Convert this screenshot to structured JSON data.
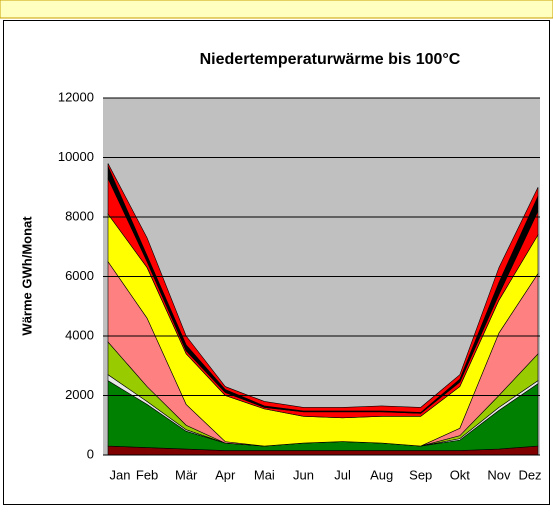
{
  "chart_data": {
    "type": "stacked_area",
    "title": "Niedertemperaturwärme  bis 100°C",
    "y_label": "Wärme GWh/Monat",
    "categories": [
      "Jan",
      "Feb",
      "Mär",
      "Apr",
      "Mai",
      "Jun",
      "Jul",
      "Aug",
      "Sep",
      "Okt",
      "Nov",
      "Dez"
    ],
    "ylim": [
      0,
      12000
    ],
    "yticks": [
      0,
      2000,
      4000,
      6000,
      8000,
      10000,
      12000
    ],
    "grid": true,
    "series": [
      {
        "color": "#800000",
        "values": [
          300,
          250,
          200,
          150,
          150,
          150,
          150,
          150,
          150,
          150,
          200,
          300
        ]
      },
      {
        "color": "#008000",
        "values": [
          2200,
          1450,
          600,
          250,
          150,
          250,
          300,
          250,
          150,
          350,
          1300,
          2100
        ]
      },
      {
        "color": "#e8e8e8",
        "values": [
          200,
          100,
          50,
          0,
          0,
          0,
          0,
          0,
          0,
          50,
          100,
          100
        ]
      },
      {
        "color": "#99cc00",
        "values": [
          1100,
          500,
          150,
          0,
          0,
          0,
          0,
          0,
          0,
          100,
          400,
          900
        ]
      },
      {
        "color": "#ff8080",
        "values": [
          2700,
          2300,
          700,
          50,
          0,
          0,
          0,
          0,
          0,
          250,
          2100,
          2700
        ]
      },
      {
        "color": "#ffff00",
        "values": [
          1600,
          1700,
          1700,
          1550,
          1250,
          900,
          800,
          900,
          1000,
          1400,
          1100,
          1300
        ]
      },
      {
        "color": "#ff0000",
        "values": [
          1200,
          200,
          100,
          100,
          50,
          150,
          200,
          150,
          100,
          150,
          200,
          800
        ]
      },
      {
        "color": "#000000",
        "values": [
          400,
          200,
          200,
          100,
          50,
          30,
          30,
          30,
          30,
          100,
          400,
          500
        ]
      },
      {
        "color": "#ff0000",
        "values": [
          100,
          600,
          300,
          100,
          150,
          120,
          120,
          170,
          170,
          150,
          500,
          300
        ]
      }
    ]
  }
}
